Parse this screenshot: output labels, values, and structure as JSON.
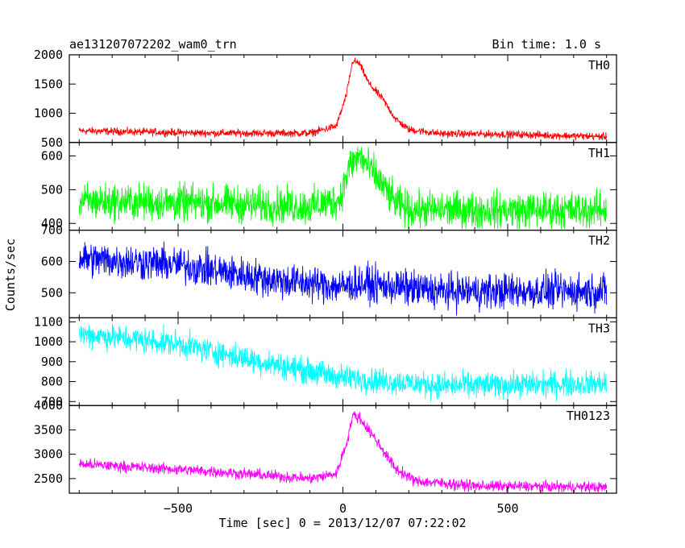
{
  "header": {
    "title": "ae131207072202_wam0_trn",
    "bin_time": "Bin time: 1.0 s"
  },
  "chart_data": {
    "type": "line",
    "xlabel": "Time [sec] 0 = 2013/12/07 07:22:02",
    "ylabel": "Counts/sec",
    "xlim": [
      -830,
      830
    ],
    "x_ticks": [
      -500,
      0,
      500
    ],
    "x_tick_labels": [
      "−500",
      "0",
      "500"
    ],
    "panels": [
      {
        "name": "TH0",
        "color": "#ff0000",
        "ylim": [
          500,
          2000
        ],
        "y_ticks": [
          500,
          1000,
          1500,
          2000
        ],
        "y_tick_labels": [
          "500",
          "1000",
          "1500",
          "2000"
        ],
        "profile": [
          [
            -800,
            700
          ],
          [
            -400,
            660
          ],
          [
            -100,
            660
          ],
          [
            -20,
            780
          ],
          [
            10,
            1300
          ],
          [
            30,
            1900
          ],
          [
            50,
            1850
          ],
          [
            80,
            1500
          ],
          [
            120,
            1250
          ],
          [
            160,
            900
          ],
          [
            200,
            720
          ],
          [
            300,
            650
          ],
          [
            500,
            640
          ],
          [
            800,
            600
          ]
        ],
        "noise": 45
      },
      {
        "name": "TH1",
        "color": "#00ff00",
        "ylim": [
          380,
          640
        ],
        "y_ticks": [
          400,
          500,
          600
        ],
        "y_tick_labels": [
          "400",
          "500",
          "600"
        ],
        "profile": [
          [
            -800,
            465
          ],
          [
            -400,
            460
          ],
          [
            -100,
            450
          ],
          [
            -10,
            470
          ],
          [
            20,
            570
          ],
          [
            50,
            600
          ],
          [
            100,
            540
          ],
          [
            160,
            460
          ],
          [
            200,
            440
          ],
          [
            800,
            440
          ]
        ],
        "noise": 38
      },
      {
        "name": "TH2",
        "color": "#0000ff",
        "ylim": [
          420,
          700
        ],
        "y_ticks": [
          500,
          600,
          700
        ],
        "y_tick_labels": [
          "500",
          "600",
          "700"
        ],
        "profile": [
          [
            -800,
            610
          ],
          [
            -500,
            590
          ],
          [
            -200,
            540
          ],
          [
            0,
            520
          ],
          [
            50,
            530
          ],
          [
            300,
            505
          ],
          [
            800,
            505
          ]
        ],
        "noise": 40
      },
      {
        "name": "TH3",
        "color": "#00ffff",
        "ylim": [
          680,
          1120
        ],
        "y_ticks": [
          700,
          800,
          900,
          1000,
          1100
        ],
        "y_tick_labels": [
          "700",
          "800",
          "900",
          "1000",
          "1100"
        ],
        "profile": [
          [
            -800,
            1040
          ],
          [
            -500,
            990
          ],
          [
            -250,
            900
          ],
          [
            0,
            820
          ],
          [
            300,
            780
          ],
          [
            800,
            790
          ]
        ],
        "noise": 45
      },
      {
        "name": "TH0123",
        "color": "#ff00ff",
        "ylim": [
          2200,
          4000
        ],
        "y_ticks": [
          2500,
          3000,
          3500,
          4000
        ],
        "y_tick_labels": [
          "2500",
          "3000",
          "3500",
          "4000"
        ],
        "profile": [
          [
            -800,
            2800
          ],
          [
            -400,
            2650
          ],
          [
            -100,
            2500
          ],
          [
            -20,
            2600
          ],
          [
            10,
            3200
          ],
          [
            30,
            3800
          ],
          [
            50,
            3750
          ],
          [
            100,
            3300
          ],
          [
            160,
            2700
          ],
          [
            220,
            2450
          ],
          [
            400,
            2350
          ],
          [
            800,
            2320
          ]
        ],
        "noise": 80
      }
    ]
  }
}
